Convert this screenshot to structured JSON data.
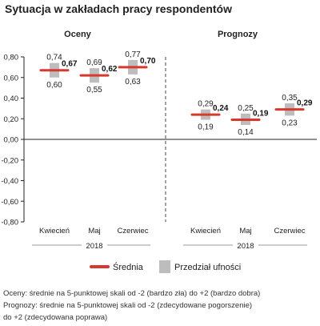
{
  "title": "Sytuacja w zakładach pracy respondentów",
  "chart_data": {
    "type": "interval-dot",
    "ylim": [
      -0.8,
      0.8
    ],
    "y_ticks": [
      "0,80",
      "0,60",
      "0,40",
      "0,20",
      "0,00",
      "-0,20",
      "-0,40",
      "-0,60",
      "-0,80"
    ],
    "y_tick_values": [
      0.8,
      0.6,
      0.4,
      0.2,
      0.0,
      -0.2,
      -0.4,
      -0.6,
      -0.8
    ],
    "panels": [
      {
        "name": "Oceny",
        "categories": [
          "Kwiecień",
          "Maj",
          "Czerwiec"
        ],
        "year": "2018",
        "mean": [
          0.67,
          0.62,
          0.7
        ],
        "low": [
          0.6,
          0.55,
          0.63
        ],
        "high": [
          0.74,
          0.69,
          0.77
        ],
        "mean_labels": [
          "0,67",
          "0,62",
          "0,70"
        ],
        "low_labels": [
          "0,60",
          "0,55",
          "0,63"
        ],
        "high_labels": [
          "0,74",
          "0,69",
          "0,77"
        ]
      },
      {
        "name": "Prognozy",
        "categories": [
          "Kwiecień",
          "Maj",
          "Czerwiec"
        ],
        "year": "2018",
        "mean": [
          0.24,
          0.19,
          0.29
        ],
        "low": [
          0.19,
          0.14,
          0.23
        ],
        "high": [
          0.29,
          0.25,
          0.35
        ],
        "mean_labels": [
          "0,24",
          "0,19",
          "0,29"
        ],
        "low_labels": [
          "0,19",
          "0,14",
          "0,23"
        ],
        "high_labels": [
          "0,29",
          "0,25",
          "0,35"
        ]
      }
    ],
    "legend": {
      "mean_label": "Średnia",
      "interval_label": "Przedział ufności",
      "placement": "bottom"
    },
    "colors": {
      "mean": "#d63a2f",
      "interval": "#bdbdbd",
      "axis": "#222222",
      "divider": "#666666"
    }
  },
  "footnotes": [
    "Oceny: średnie na 5-punktowej skali od -2 (bardzo zła) do +2 (bardzo dobra)",
    "Prognozy: średnie na 5-punktowej skali od -2 (zdecydowane pogorszenie)",
    "do +2 (zdecydowana poprawa)"
  ]
}
